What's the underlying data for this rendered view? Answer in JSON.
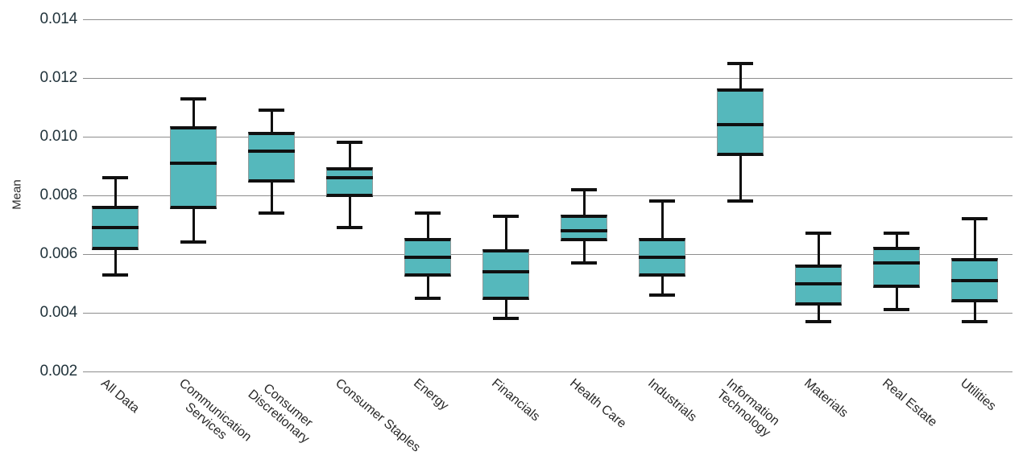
{
  "chart_data": {
    "type": "boxplot",
    "title": "",
    "xlabel": "",
    "ylabel": "Mean",
    "ylim": [
      0.002,
      0.014
    ],
    "grid": true,
    "legend": false,
    "ytick_labels": [
      "0.014",
      "0.012",
      "0.010",
      "0.008",
      "0.006",
      "0.004",
      "0.002"
    ],
    "ytick_values": [
      0.014,
      0.012,
      0.01,
      0.008,
      0.006,
      0.004,
      0.002
    ],
    "categories": [
      "All Data",
      "Communication Services",
      "Consumer Discretionary",
      "Consumer Staples",
      "Energy",
      "Financials",
      "Health Care",
      "Industrials",
      "Information Technology",
      "Materials",
      "Real Estate",
      "Utilities"
    ],
    "category_label_lines": [
      [
        "All Data"
      ],
      [
        "Communication",
        "Services"
      ],
      [
        "Consumer",
        "Discretionary"
      ],
      [
        "Consumer Staples"
      ],
      [
        "Energy"
      ],
      [
        "Financials"
      ],
      [
        "Health Care"
      ],
      [
        "Industrials"
      ],
      [
        "Information",
        "Technology"
      ],
      [
        "Materials"
      ],
      [
        "Real Estate"
      ],
      [
        "Utilities"
      ]
    ],
    "series": [
      {
        "name": "All Data",
        "min": 0.0053,
        "q1": 0.0062,
        "median": 0.0069,
        "q3": 0.0076,
        "max": 0.0086
      },
      {
        "name": "Communication Services",
        "min": 0.0064,
        "q1": 0.0076,
        "median": 0.0091,
        "q3": 0.0103,
        "max": 0.0113
      },
      {
        "name": "Consumer Discretionary",
        "min": 0.0074,
        "q1": 0.0085,
        "median": 0.0095,
        "q3": 0.0101,
        "max": 0.0109
      },
      {
        "name": "Consumer Staples",
        "min": 0.0069,
        "q1": 0.008,
        "median": 0.0086,
        "q3": 0.0089,
        "max": 0.0098
      },
      {
        "name": "Energy",
        "min": 0.0045,
        "q1": 0.0053,
        "median": 0.0059,
        "q3": 0.0065,
        "max": 0.0074
      },
      {
        "name": "Financials",
        "min": 0.0038,
        "q1": 0.0045,
        "median": 0.0054,
        "q3": 0.0061,
        "max": 0.0073
      },
      {
        "name": "Health Care",
        "min": 0.0057,
        "q1": 0.0065,
        "median": 0.0068,
        "q3": 0.0073,
        "max": 0.0082
      },
      {
        "name": "Industrials",
        "min": 0.0046,
        "q1": 0.0053,
        "median": 0.0059,
        "q3": 0.0065,
        "max": 0.0078
      },
      {
        "name": "Information Technology",
        "min": 0.0078,
        "q1": 0.0094,
        "median": 0.0104,
        "q3": 0.0116,
        "max": 0.0125
      },
      {
        "name": "Materials",
        "min": 0.0037,
        "q1": 0.0043,
        "median": 0.005,
        "q3": 0.0056,
        "max": 0.0067
      },
      {
        "name": "Real Estate",
        "min": 0.0041,
        "q1": 0.0049,
        "median": 0.0057,
        "q3": 0.0062,
        "max": 0.0067
      },
      {
        "name": "Utilities",
        "min": 0.0037,
        "q1": 0.0044,
        "median": 0.0051,
        "q3": 0.0058,
        "max": 0.0072
      }
    ]
  },
  "colors": {
    "box_fill": "#55b8bc",
    "box_line": "#101010",
    "box_edge": "#8f9a9a",
    "grid_line": "#8d8d8d",
    "tick_text": "#22343c",
    "label_text": "#282828"
  }
}
